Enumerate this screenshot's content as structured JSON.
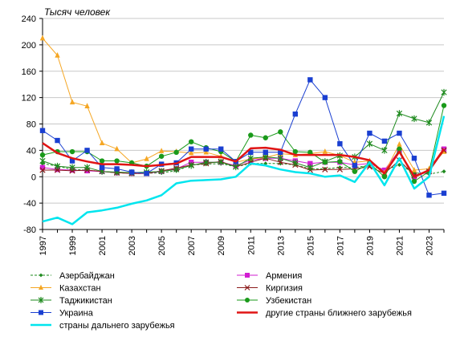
{
  "chart_data": {
    "type": "line",
    "ylabel": "Тысяч человек",
    "ylim": [
      -80,
      240
    ],
    "yticks": [
      -80,
      -40,
      0,
      40,
      80,
      120,
      160,
      200,
      240
    ],
    "xlim": [
      1997,
      2024
    ],
    "xticks": [
      1997,
      1999,
      2001,
      2003,
      2005,
      2007,
      2009,
      2011,
      2013,
      2015,
      2017,
      2019,
      2021,
      2023
    ],
    "grid": "horizontal",
    "legend_position": "bottom",
    "x": [
      1997,
      1998,
      1999,
      2000,
      2001,
      2002,
      2003,
      2004,
      2005,
      2006,
      2007,
      2008,
      2009,
      2010,
      2011,
      2012,
      2013,
      2014,
      2015,
      2016,
      2017,
      2018,
      2019,
      2020,
      2021,
      2022,
      2023,
      2024
    ],
    "series": [
      {
        "name": "Азербайджан",
        "color": "#1e8a1e",
        "marker": "diamond",
        "dash": "3,2",
        "width": 1,
        "values": [
          20,
          16,
          11,
          10,
          8,
          6,
          5,
          5,
          6,
          9,
          18,
          19,
          20,
          15,
          20,
          20,
          20,
          18,
          12,
          12,
          14,
          14,
          17,
          10,
          18,
          6,
          4,
          8
        ]
      },
      {
        "name": "Армения",
        "color": "#d21ed2",
        "marker": "square",
        "dash": "",
        "width": 1,
        "values": [
          14,
          11,
          10,
          9,
          8,
          6,
          5,
          5,
          8,
          12,
          22,
          22,
          22,
          17,
          25,
          28,
          28,
          24,
          20,
          22,
          22,
          18,
          20,
          10,
          40,
          0,
          8,
          42
        ]
      },
      {
        "name": "Казахстан",
        "color": "#f5a623",
        "marker": "triangle",
        "dash": "",
        "width": 1,
        "values": [
          210,
          184,
          113,
          107,
          51,
          42,
          21,
          27,
          39,
          38,
          36,
          37,
          31,
          22,
          27,
          29,
          35,
          33,
          35,
          38,
          32,
          22,
          24,
          6,
          49,
          10,
          12,
          38
        ]
      },
      {
        "name": "Киргизия",
        "color": "#8b1a1a",
        "marker": "x",
        "dash": "",
        "width": 1,
        "values": [
          10,
          10,
          9,
          10,
          8,
          6,
          5,
          5,
          9,
          13,
          18,
          20,
          23,
          15,
          22,
          28,
          22,
          18,
          10,
          11,
          11,
          12,
          15,
          5,
          25,
          2,
          8,
          40
        ]
      },
      {
        "name": "Таджикистан",
        "color": "#1e8a1e",
        "marker": "asterisk",
        "dash": "",
        "width": 1,
        "values": [
          24,
          16,
          14,
          14,
          8,
          7,
          6,
          7,
          8,
          11,
          17,
          22,
          22,
          15,
          28,
          30,
          28,
          21,
          14,
          23,
          32,
          30,
          50,
          40,
          96,
          88,
          82,
          128
        ]
      },
      {
        "name": "Узбекистан",
        "color": "#1a9a1a",
        "marker": "circle",
        "dash": "",
        "width": 1,
        "values": [
          33,
          38,
          38,
          38,
          24,
          24,
          21,
          16,
          31,
          37,
          53,
          44,
          38,
          23,
          63,
          59,
          68,
          38,
          37,
          22,
          23,
          8,
          20,
          0,
          42,
          -7,
          8,
          108
        ]
      },
      {
        "name": "Украина",
        "color": "#1a3fd1",
        "marker": "square",
        "dash": "",
        "width": 1,
        "values": [
          70,
          55,
          24,
          40,
          14,
          12,
          7,
          5,
          19,
          21,
          42,
          42,
          42,
          23,
          37,
          37,
          37,
          95,
          147,
          120,
          50,
          17,
          66,
          54,
          66,
          28,
          -28,
          -25
        ]
      },
      {
        "name": "другие страны ближнего зарубежья",
        "color": "#e01414",
        "marker": "none",
        "dash": "",
        "width": 2.5,
        "values": [
          51,
          36,
          28,
          23,
          19,
          19,
          18,
          16,
          18,
          20,
          30,
          30,
          30,
          23,
          43,
          44,
          41,
          33,
          33,
          33,
          33,
          30,
          25,
          5,
          38,
          0,
          10,
          42
        ]
      },
      {
        "name": "страны дальнего зарубежья",
        "color": "#00e5ee",
        "marker": "none",
        "dash": "",
        "width": 2.5,
        "values": [
          -68,
          -62,
          -72,
          -54,
          -51,
          -47,
          -41,
          -36,
          -28,
          -10,
          -6,
          -5,
          -4,
          0,
          20,
          17,
          11,
          7,
          5,
          0,
          2,
          -8,
          22,
          -13,
          28,
          -18,
          0,
          92
        ]
      }
    ]
  }
}
